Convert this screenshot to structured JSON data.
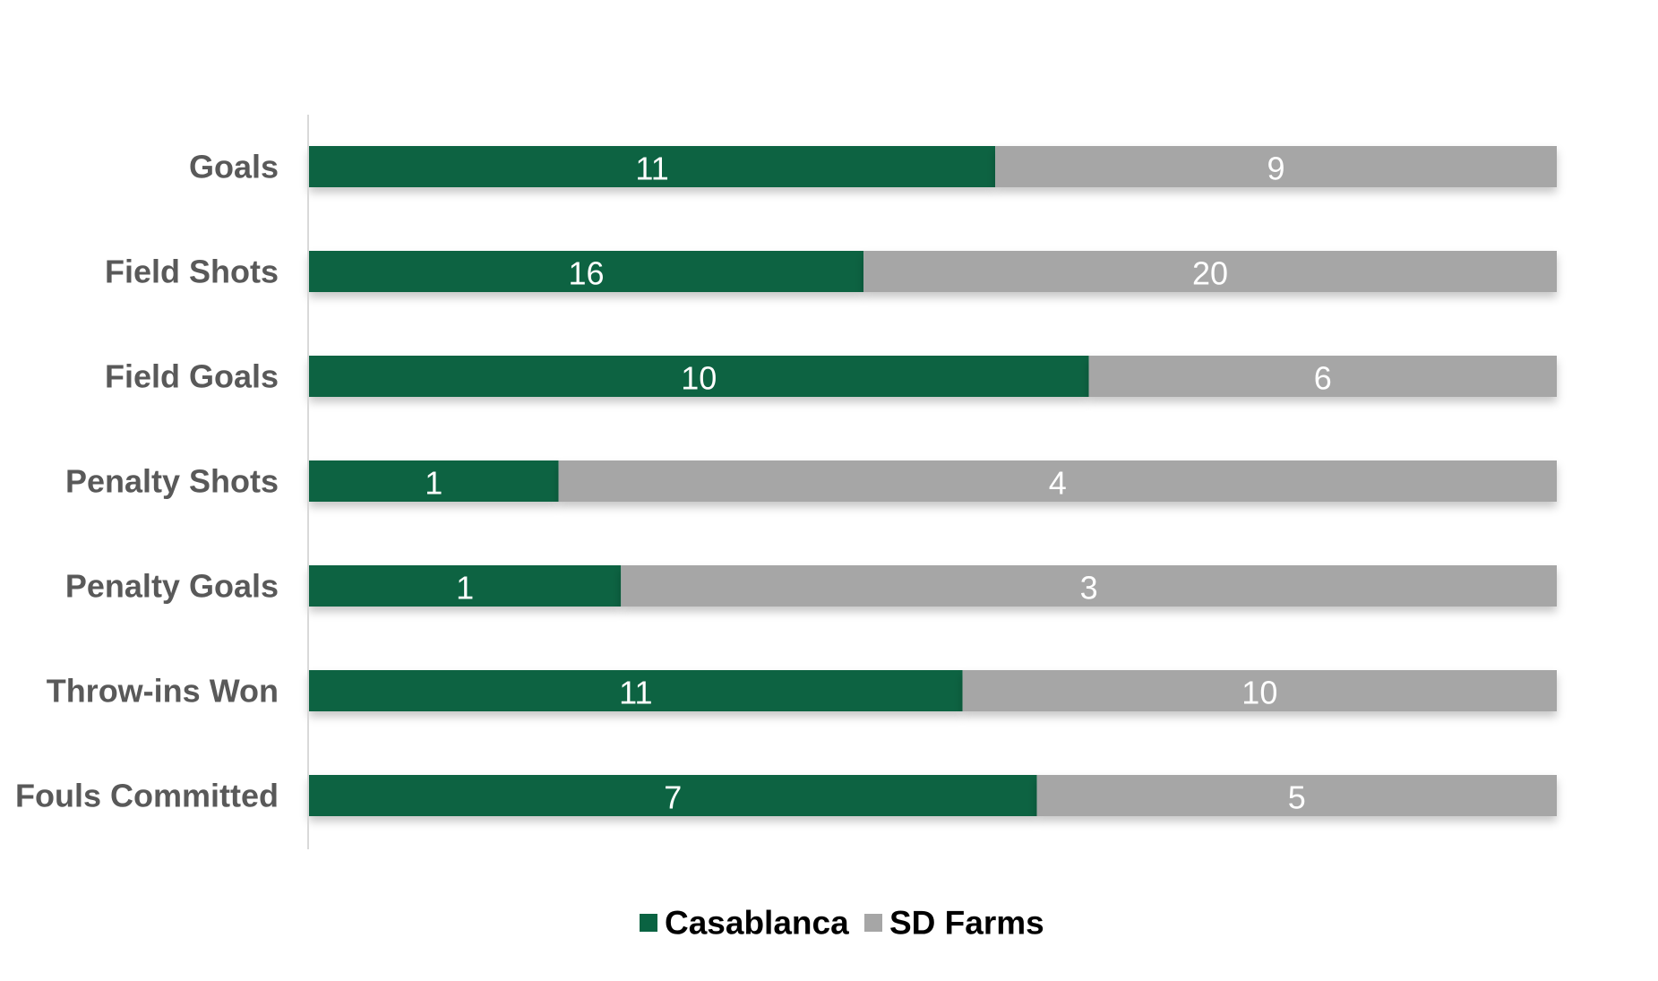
{
  "chart_data": {
    "type": "bar",
    "orientation": "horizontal",
    "stacking": "percent",
    "categories": [
      "Goals",
      "Field Shots",
      "Field Goals",
      "Penalty Shots",
      "Penalty Goals",
      "Throw-ins Won",
      "Fouls Committed"
    ],
    "series": [
      {
        "name": "Casablanca",
        "color": "#0a6342",
        "values": [
          11,
          16,
          10,
          1,
          1,
          11,
          7
        ]
      },
      {
        "name": "SD Farms",
        "color": "#a6a6a6",
        "values": [
          9,
          20,
          6,
          4,
          3,
          10,
          5
        ]
      }
    ],
    "title": "",
    "xlabel": "",
    "ylabel": "",
    "grid": false,
    "legend": "bottom"
  }
}
